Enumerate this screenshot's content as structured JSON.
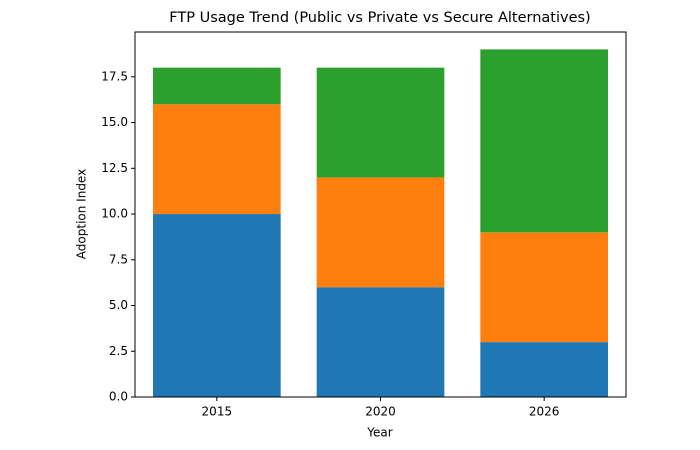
{
  "chart_data": {
    "type": "stacked-bar",
    "title": "FTP Usage Trend (Public vs Private vs Secure Alternatives)",
    "x_label": "Year",
    "y_label": "Adoption Index",
    "categories": [
      "2015",
      "2020",
      "2026"
    ],
    "series": [
      {
        "color": "#1f77b4",
        "values": [
          10,
          6,
          3
        ]
      },
      {
        "color": "#ff7f0e",
        "values": [
          6,
          6,
          6
        ]
      },
      {
        "color": "#2ca02c",
        "values": [
          2,
          6,
          10
        ]
      }
    ],
    "ylim": [
      0,
      19.95
    ],
    "yticks": [
      {
        "value": 0,
        "label": "0.0"
      },
      {
        "value": 2.5,
        "label": "2.5"
      },
      {
        "value": 5,
        "label": "5.0"
      },
      {
        "value": 7.5,
        "label": "7.5"
      },
      {
        "value": 10,
        "label": "10.0"
      },
      {
        "value": 12.5,
        "label": "12.5"
      },
      {
        "value": 15,
        "label": "15.0"
      },
      {
        "value": 17.5,
        "label": "17.5"
      }
    ],
    "grid": false
  }
}
